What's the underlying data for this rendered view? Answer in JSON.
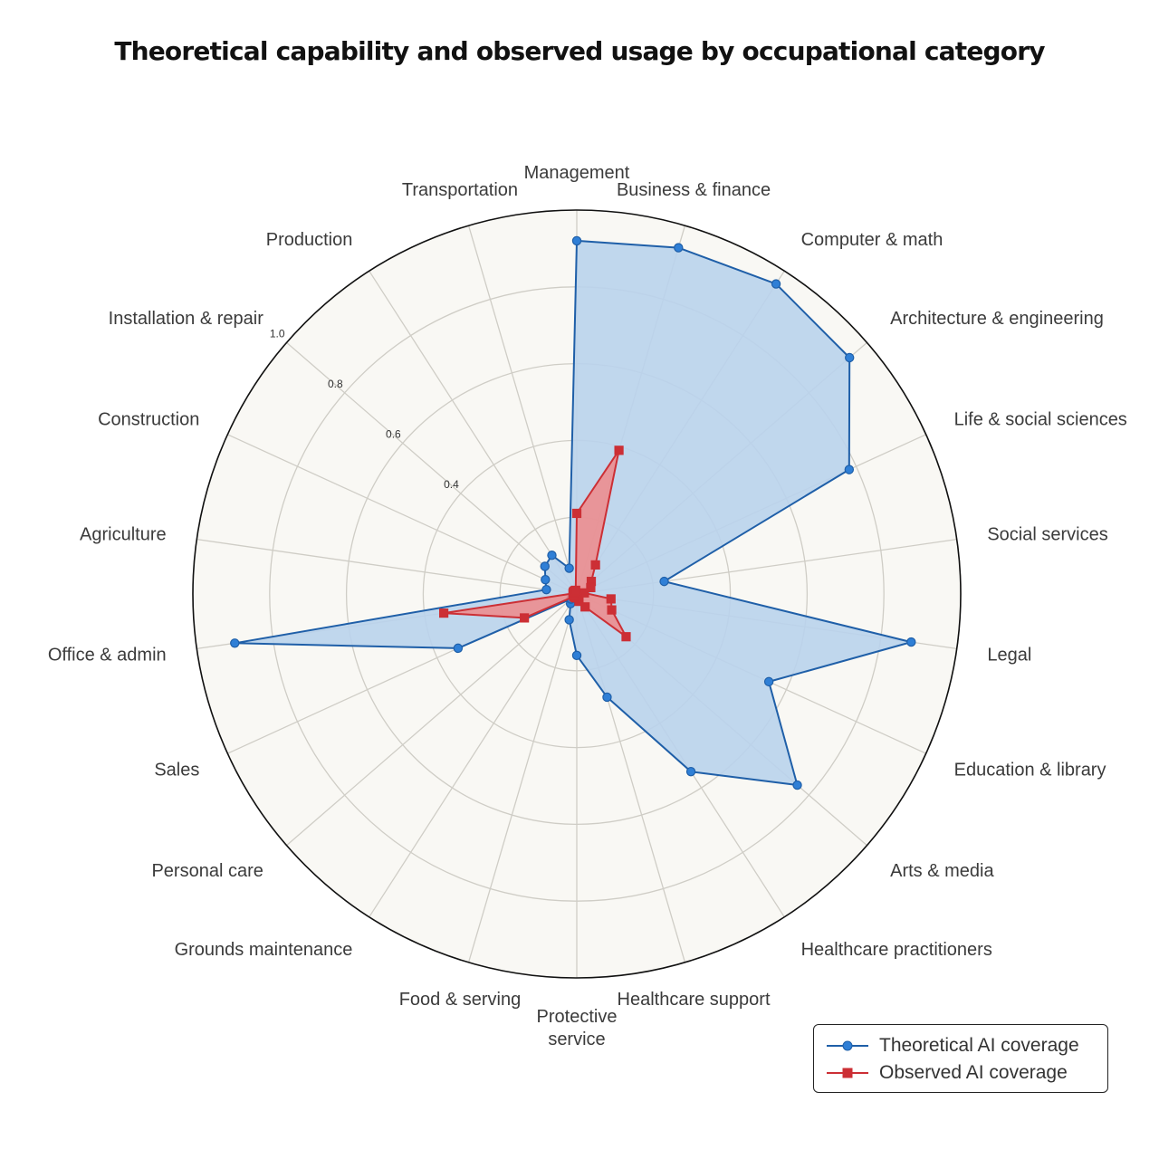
{
  "title": "Theoretical capability and observed usage by occupational category",
  "colors": {
    "theoretical": "#1f5fa8",
    "theoretical_marker": "#2f7fd6",
    "theoretical_fill": "#b9d3ec",
    "observed": "#cc2f35",
    "observed_fill": "#ef8a8a",
    "background": "#f9f8f4",
    "grid": "#cfcdc6"
  },
  "legend": {
    "theoretical_label": "Theoretical AI coverage",
    "observed_label": "Observed AI coverage"
  },
  "chart_data": {
    "type": "radar",
    "title": "Theoretical capability and observed usage by occupational category",
    "categories": [
      "Management",
      "Business & finance",
      "Computer & math",
      "Architecture & engineering",
      "Life & social sciences",
      "Social services",
      "Legal",
      "Education & library",
      "Arts & media",
      "Healthcare practitioners",
      "Healthcare support",
      "Protective service",
      "Food & serving",
      "Grounds maintenance",
      "Personal care",
      "Sales",
      "Office & admin",
      "Agriculture",
      "Construction",
      "Installation & repair",
      "Production",
      "Transportation"
    ],
    "radial_ticks": [
      "0.4",
      "0.6",
      "0.8",
      "1.0"
    ],
    "rlim": [
      0,
      1.0
    ],
    "series": [
      {
        "name": "Theoretical AI coverage",
        "marker": "circle",
        "values": [
          0.92,
          0.94,
          0.96,
          0.94,
          0.78,
          0.23,
          0.88,
          0.55,
          0.76,
          0.55,
          0.28,
          0.16,
          0.07,
          0.03,
          0.02,
          0.34,
          0.9,
          0.08,
          0.09,
          0.11,
          0.12,
          0.07
        ]
      },
      {
        "name": "Observed AI coverage",
        "marker": "square",
        "values": [
          0.21,
          0.39,
          0.09,
          0.05,
          0.04,
          0.02,
          0.09,
          0.1,
          0.17,
          0.04,
          0.02,
          0.01,
          0.01,
          0.01,
          0.01,
          0.15,
          0.35,
          0.01,
          0.01,
          0.01,
          0.01,
          0.01
        ]
      }
    ],
    "grid": true,
    "legend_position": "bottom-right"
  }
}
